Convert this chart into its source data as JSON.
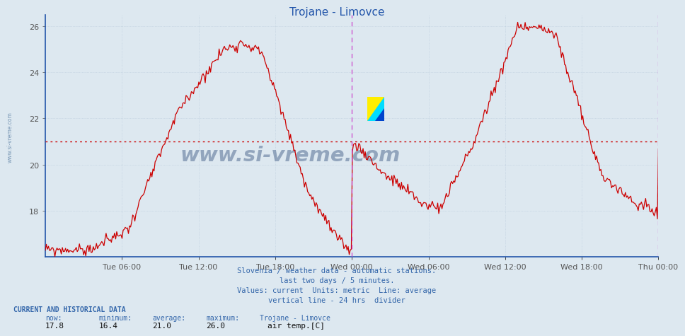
{
  "title": "Trojane - Limovce",
  "title_color": "#2255aa",
  "bg_color": "#dde8f0",
  "plot_bg_color": "#dde8f0",
  "line_color": "#cc0000",
  "avg_line_color": "#cc0000",
  "avg_value": 21.0,
  "vline_color": "#cc44cc",
  "ylim": [
    16.0,
    26.5
  ],
  "yticks": [
    18,
    20,
    22,
    24,
    26
  ],
  "xlabel_labels": [
    "Tue 06:00",
    "Tue 12:00",
    "Tue 18:00",
    "Wed 00:00",
    "Wed 06:00",
    "Wed 12:00",
    "Wed 18:00",
    "Thu 00:00"
  ],
  "footer_lines": [
    "Slovenia / weather data - automatic stations.",
    "last two days / 5 minutes.",
    "Values: current  Units: metric  Line: average",
    "vertical line - 24 hrs  divider"
  ],
  "footer_color": "#3366aa",
  "current_label": "CURRENT AND HISTORICAL DATA",
  "stats_labels": [
    "now:",
    "minimum:",
    "average:",
    "maximum:",
    "Trojane - Limovce"
  ],
  "stats_values": [
    "17.8",
    "16.4",
    "21.0",
    "26.0"
  ],
  "legend_label": "air temp.[C]",
  "legend_color": "#aa0000",
  "watermark": "www.si-vreme.com",
  "watermark_color": "#1a3a6a",
  "side_label": "www.si-vreme.com",
  "n_points": 576,
  "logo_yellow": "#ffee00",
  "logo_cyan": "#00ddff",
  "logo_blue": "#0044cc",
  "grid_color": "#bbccdd",
  "axis_color": "#2255aa",
  "tick_color": "#555555",
  "spine_color": "#2255aa"
}
